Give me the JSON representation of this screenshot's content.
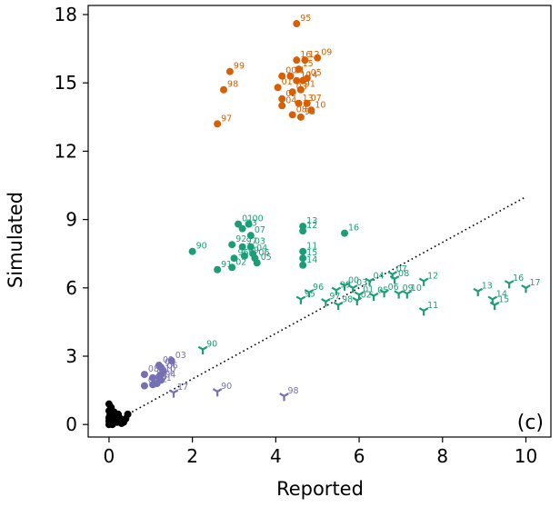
{
  "chart_data": {
    "type": "scatter",
    "title": "",
    "xlabel": "Reported",
    "ylabel": "Simulated",
    "xlim": [
      -0.5,
      10.6
    ],
    "ylim": [
      -0.55,
      18.4
    ],
    "xticks": [
      0,
      2,
      4,
      6,
      8,
      10
    ],
    "yticks": [
      0,
      3,
      6,
      9,
      12,
      15,
      18
    ],
    "xtick_labels": [
      "0",
      "2",
      "4",
      "6",
      "8",
      "10"
    ],
    "ytick_labels": [
      "0",
      "3",
      "6",
      "9",
      "12",
      "15",
      "18"
    ],
    "panel_label": "(c)",
    "grid": false,
    "reference_line": {
      "style": "dotted",
      "color": "#000000",
      "points": [
        [
          0,
          0
        ],
        [
          10,
          10
        ]
      ]
    },
    "colors": {
      "orange": "#d95f02",
      "green": "#1b9e77",
      "purple": "#7570b3",
      "black": "#000000"
    },
    "series": [
      {
        "color": "#d95f02",
        "marker": "circle",
        "points": [
          {
            "x": 4.5,
            "y": 17.6,
            "label": "95"
          },
          {
            "x": 4.5,
            "y": 16.0,
            "label": "16"
          },
          {
            "x": 4.55,
            "y": 15.6,
            "label": "15"
          },
          {
            "x": 4.7,
            "y": 16.0,
            "label": "12"
          },
          {
            "x": 5.0,
            "y": 16.1,
            "label": "09"
          },
          {
            "x": 4.75,
            "y": 15.2,
            "label": "05"
          },
          {
            "x": 2.9,
            "y": 15.5,
            "label": "99"
          },
          {
            "x": 2.75,
            "y": 14.7,
            "label": "98"
          },
          {
            "x": 4.15,
            "y": 15.3,
            "label": "00"
          },
          {
            "x": 4.35,
            "y": 15.3,
            "label": "11"
          },
          {
            "x": 4.5,
            "y": 15.1,
            "label": "10"
          },
          {
            "x": 4.65,
            "y": 15.1,
            "label": "14"
          },
          {
            "x": 4.05,
            "y": 14.8,
            "label": "01"
          },
          {
            "x": 4.4,
            "y": 14.6,
            "label": "03"
          },
          {
            "x": 4.6,
            "y": 14.7,
            "label": "91"
          },
          {
            "x": 4.15,
            "y": 14.3,
            "label": "02"
          },
          {
            "x": 4.55,
            "y": 14.1,
            "label": "13"
          },
          {
            "x": 4.15,
            "y": 14.0,
            "label": "04"
          },
          {
            "x": 4.75,
            "y": 14.1,
            "label": "07"
          },
          {
            "x": 4.4,
            "y": 13.6,
            "label": "08"
          },
          {
            "x": 4.85,
            "y": 13.8,
            "label": "10"
          },
          {
            "x": 4.6,
            "y": 13.5,
            "label": "93"
          },
          {
            "x": 2.6,
            "y": 13.2,
            "label": "97"
          }
        ]
      },
      {
        "color": "#1b9e77",
        "marker": "circle",
        "points": [
          {
            "x": 3.1,
            "y": 8.8,
            "label": "01"
          },
          {
            "x": 3.35,
            "y": 8.8,
            "label": "00"
          },
          {
            "x": 3.2,
            "y": 8.6,
            "label": "93"
          },
          {
            "x": 4.65,
            "y": 8.7,
            "label": "13"
          },
          {
            "x": 4.65,
            "y": 8.5,
            "label": "12"
          },
          {
            "x": 5.65,
            "y": 8.4,
            "label": "16"
          },
          {
            "x": 3.4,
            "y": 8.3,
            "label": "07"
          },
          {
            "x": 2.95,
            "y": 7.9,
            "label": "92"
          },
          {
            "x": 3.2,
            "y": 7.8,
            "label": "97"
          },
          {
            "x": 3.4,
            "y": 7.8,
            "label": "03"
          },
          {
            "x": 4.65,
            "y": 7.6,
            "label": "11"
          },
          {
            "x": 2.0,
            "y": 7.6,
            "label": "90"
          },
          {
            "x": 3.45,
            "y": 7.5,
            "label": "04"
          },
          {
            "x": 3.0,
            "y": 7.3,
            "label": "96"
          },
          {
            "x": 3.25,
            "y": 7.4,
            "label": "09"
          },
          {
            "x": 3.5,
            "y": 7.3,
            "label": "06"
          },
          {
            "x": 4.65,
            "y": 7.3,
            "label": "15"
          },
          {
            "x": 2.6,
            "y": 6.8,
            "label": "91"
          },
          {
            "x": 2.95,
            "y": 6.9,
            "label": "02"
          },
          {
            "x": 3.55,
            "y": 7.1,
            "label": "05"
          },
          {
            "x": 4.65,
            "y": 7.0,
            "label": "14"
          }
        ]
      },
      {
        "color": "#1b9e77",
        "marker": "tri_down",
        "points": [
          {
            "x": 9.6,
            "y": 6.2,
            "label": "16"
          },
          {
            "x": 10.0,
            "y": 6.0,
            "label": "17"
          },
          {
            "x": 8.85,
            "y": 5.85,
            "label": "13"
          },
          {
            "x": 9.2,
            "y": 5.5,
            "label": "14"
          },
          {
            "x": 9.25,
            "y": 5.25,
            "label": "15"
          },
          {
            "x": 7.55,
            "y": 6.3,
            "label": "12"
          },
          {
            "x": 6.8,
            "y": 6.6,
            "label": "07"
          },
          {
            "x": 6.85,
            "y": 6.4,
            "label": "08"
          },
          {
            "x": 6.25,
            "y": 6.3,
            "label": "04"
          },
          {
            "x": 5.65,
            "y": 6.1,
            "label": "00"
          },
          {
            "x": 5.85,
            "y": 6.0,
            "label": "03"
          },
          {
            "x": 5.45,
            "y": 5.9,
            "label": "99"
          },
          {
            "x": 6.0,
            "y": 5.7,
            "label": "01"
          },
          {
            "x": 6.6,
            "y": 5.8,
            "label": "06"
          },
          {
            "x": 7.15,
            "y": 5.75,
            "label": "10"
          },
          {
            "x": 6.35,
            "y": 5.65,
            "label": "05"
          },
          {
            "x": 6.95,
            "y": 5.75,
            "label": "09"
          },
          {
            "x": 4.8,
            "y": 5.8,
            "label": "96"
          },
          {
            "x": 4.6,
            "y": 5.5,
            "label": "95"
          },
          {
            "x": 5.2,
            "y": 5.4,
            "label": "97"
          },
          {
            "x": 5.5,
            "y": 5.25,
            "label": "98"
          },
          {
            "x": 5.95,
            "y": 5.45,
            "label": "02"
          },
          {
            "x": 7.55,
            "y": 5.0,
            "label": "11"
          },
          {
            "x": 2.25,
            "y": 3.3,
            "label": "90"
          }
        ]
      },
      {
        "color": "#7570b3",
        "marker": "circle",
        "points": [
          {
            "x": 1.5,
            "y": 2.8,
            "label": "03"
          },
          {
            "x": 1.2,
            "y": 2.6,
            "label": "09"
          },
          {
            "x": 1.25,
            "y": 2.5,
            "label": "05"
          },
          {
            "x": 1.3,
            "y": 2.35,
            "label": "06"
          },
          {
            "x": 1.25,
            "y": 2.2,
            "label": "10"
          },
          {
            "x": 1.2,
            "y": 2.1,
            "label": "11"
          },
          {
            "x": 0.85,
            "y": 2.2,
            "label": "08"
          },
          {
            "x": 1.05,
            "y": 2.05,
            "label": "00"
          },
          {
            "x": 1.25,
            "y": 1.95,
            "label": "04"
          },
          {
            "x": 0.85,
            "y": 1.7,
            "label": "07"
          },
          {
            "x": 1.05,
            "y": 1.75,
            "label": "02"
          },
          {
            "x": 1.15,
            "y": 1.8,
            "label": "01"
          }
        ]
      },
      {
        "color": "#7570b3",
        "marker": "tri_down",
        "points": [
          {
            "x": 1.55,
            "y": 1.4,
            "label": "17"
          },
          {
            "x": 2.6,
            "y": 1.45,
            "label": "90"
          },
          {
            "x": 4.2,
            "y": 1.25,
            "label": "98"
          }
        ]
      },
      {
        "color": "#000000",
        "marker": "circle",
        "points": [
          {
            "x": 0.0,
            "y": 0.9,
            "label": ""
          },
          {
            "x": 0.05,
            "y": 0.75,
            "label": ""
          },
          {
            "x": 0.0,
            "y": 0.6,
            "label": ""
          },
          {
            "x": 0.08,
            "y": 0.5,
            "label": ""
          },
          {
            "x": 0.02,
            "y": 0.4,
            "label": ""
          },
          {
            "x": 0.15,
            "y": 0.35,
            "label": ""
          },
          {
            "x": 0.1,
            "y": 0.25,
            "label": ""
          },
          {
            "x": 0.25,
            "y": 0.3,
            "label": ""
          },
          {
            "x": 0.3,
            "y": 0.2,
            "label": ""
          },
          {
            "x": 0.45,
            "y": 0.45,
            "label": ""
          },
          {
            "x": 0.0,
            "y": 0.15,
            "label": ""
          },
          {
            "x": 0.05,
            "y": 0.05,
            "label": ""
          },
          {
            "x": 0.2,
            "y": 0.1,
            "label": ""
          },
          {
            "x": 0.35,
            "y": 0.1,
            "label": ""
          },
          {
            "x": 0.0,
            "y": 0.3,
            "label": ""
          },
          {
            "x": 0.12,
            "y": 0.55,
            "label": ""
          },
          {
            "x": 0.18,
            "y": 0.15,
            "label": ""
          },
          {
            "x": 0.4,
            "y": 0.25,
            "label": ""
          },
          {
            "x": 0.08,
            "y": 0.0,
            "label": ""
          },
          {
            "x": 0.22,
            "y": 0.45,
            "label": ""
          },
          {
            "x": 0.0,
            "y": 0.0,
            "label": ""
          },
          {
            "x": 0.3,
            "y": 0.05,
            "label": ""
          }
        ]
      }
    ]
  }
}
